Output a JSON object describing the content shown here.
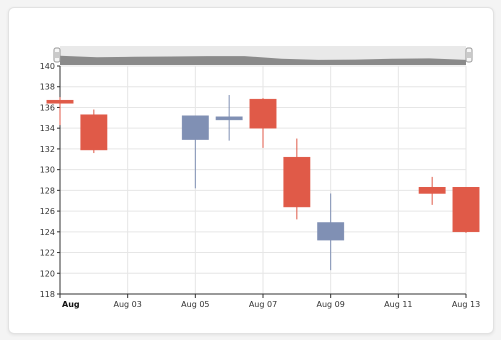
{
  "chart_data": {
    "type": "candlestick",
    "title": "",
    "xlabel": "",
    "ylabel": "",
    "ylim": [
      118,
      140
    ],
    "y_ticks": [
      118,
      120,
      122,
      124,
      126,
      128,
      130,
      132,
      134,
      136,
      138,
      140
    ],
    "x_range": [
      "2023-08-01",
      "2023-08-13"
    ],
    "x_ticks": [
      {
        "date": "2023-08-01",
        "label": "Aug",
        "bold": true
      },
      {
        "date": "2023-08-03",
        "label": "Aug 03",
        "bold": false
      },
      {
        "date": "2023-08-05",
        "label": "Aug 05",
        "bold": false
      },
      {
        "date": "2023-08-07",
        "label": "Aug 07",
        "bold": false
      },
      {
        "date": "2023-08-09",
        "label": "Aug 09",
        "bold": false
      },
      {
        "date": "2023-08-11",
        "label": "Aug 11",
        "bold": false
      },
      {
        "date": "2023-08-13",
        "label": "Aug 13",
        "bold": false
      }
    ],
    "grid": true,
    "colors": {
      "up": "#8090b4",
      "down": "#e05a48"
    },
    "navigator": {
      "shown": true,
      "values": [
        130,
        128,
        128.5,
        129,
        129.5,
        129.5,
        126,
        124.5,
        125,
        126,
        126.5,
        124.5
      ]
    },
    "candles": [
      {
        "date": "2023-08-01",
        "open": 136.7,
        "high": 137.0,
        "low": 134.3,
        "close": 136.4
      },
      {
        "date": "2023-08-02",
        "open": 135.3,
        "high": 135.8,
        "low": 131.6,
        "close": 131.9
      },
      {
        "date": "2023-08-05",
        "open": 132.9,
        "high": 135.2,
        "low": 128.2,
        "close": 135.2
      },
      {
        "date": "2023-08-06",
        "open": 134.8,
        "high": 137.2,
        "low": 132.8,
        "close": 135.1
      },
      {
        "date": "2023-08-07",
        "open": 136.8,
        "high": 136.9,
        "low": 132.1,
        "close": 134.0
      },
      {
        "date": "2023-08-08",
        "open": 131.2,
        "high": 133.0,
        "low": 125.2,
        "close": 126.4
      },
      {
        "date": "2023-08-09",
        "open": 123.2,
        "high": 127.7,
        "low": 120.3,
        "close": 124.9
      },
      {
        "date": "2023-08-12",
        "open": 128.3,
        "high": 129.3,
        "low": 126.6,
        "close": 127.7
      },
      {
        "date": "2023-08-13",
        "open": 128.3,
        "high": 128.3,
        "low": 123.9,
        "close": 124.0
      }
    ]
  }
}
